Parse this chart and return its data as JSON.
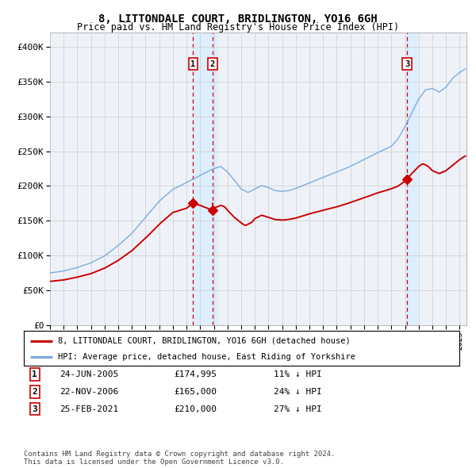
{
  "title": "8, LITTONDALE COURT, BRIDLINGTON, YO16 6GH",
  "subtitle": "Price paid vs. HM Land Registry's House Price Index (HPI)",
  "ylabel_ticks": [
    "£0",
    "£50K",
    "£100K",
    "£150K",
    "£200K",
    "£250K",
    "£300K",
    "£350K",
    "£400K"
  ],
  "ytick_values": [
    0,
    50000,
    100000,
    150000,
    200000,
    250000,
    300000,
    350000,
    400000
  ],
  "ylim": [
    0,
    420000
  ],
  "xlim_start": 1995.0,
  "xlim_end": 2025.5,
  "transaction1": {
    "date_dec": 2005.48,
    "price": 174995,
    "label": "1"
  },
  "transaction2": {
    "date_dec": 2006.9,
    "price": 165000,
    "label": "2"
  },
  "transaction3": {
    "date_dec": 2021.15,
    "price": 210000,
    "label": "3"
  },
  "legend_house": "8, LITTONDALE COURT, BRIDLINGTON, YO16 6GH (detached house)",
  "legend_hpi": "HPI: Average price, detached house, East Riding of Yorkshire",
  "table_rows": [
    {
      "num": "1",
      "date": "24-JUN-2005",
      "price": "£174,995",
      "pct": "11% ↓ HPI"
    },
    {
      "num": "2",
      "date": "22-NOV-2006",
      "price": "£165,000",
      "pct": "24% ↓ HPI"
    },
    {
      "num": "3",
      "date": "25-FEB-2021",
      "price": "£210,000",
      "pct": "27% ↓ HPI"
    }
  ],
  "footer": "Contains HM Land Registry data © Crown copyright and database right 2024.\nThis data is licensed under the Open Government Licence v3.0.",
  "house_color": "#cc0000",
  "hpi_color": "#7aaadd",
  "shade_color": "#ddeeff",
  "grid_color": "#cccccc",
  "bg_color": "#f0f4f8",
  "plot_bg_color": "#eef2f8"
}
